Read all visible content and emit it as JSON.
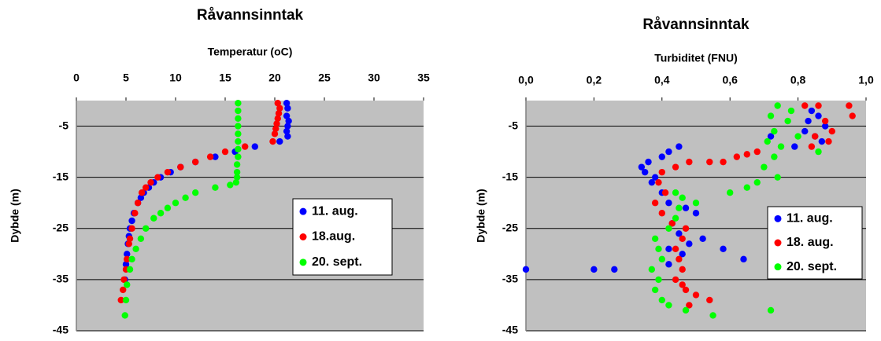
{
  "chart_data": [
    {
      "type": "scatter",
      "title": "Råvannsinntak",
      "x_label": "Temperatur (oC)",
      "y_label": "Dybde (m)",
      "xlim": [
        0,
        35
      ],
      "xticks": [
        0,
        5,
        10,
        15,
        20,
        25,
        30,
        35
      ],
      "ylim": [
        -45,
        0
      ],
      "yticks": [
        -5,
        -15,
        -25,
        -35,
        -45
      ],
      "grid": true,
      "legend": "right",
      "series": [
        {
          "name": "11. aug.",
          "color": "#0000ff",
          "x": [
            21.2,
            21.3,
            21.2,
            21.4,
            21.3,
            21.2,
            21.3,
            20.5,
            18,
            16,
            14,
            12,
            10.5,
            9.5,
            8.5,
            7.8,
            7.3,
            6.8,
            6.5,
            6.2,
            5.8,
            5.6,
            5.4,
            5.3,
            5.2,
            5.1,
            5.0,
            4.9
          ],
          "values": [
            -0.5,
            -1.5,
            -3,
            -4,
            -5,
            -6,
            -7,
            -8,
            -9,
            -10,
            -11,
            -12,
            -13,
            -14,
            -15,
            -16,
            -17,
            -18,
            -19,
            -20,
            -22,
            -23.5,
            -25,
            -26.5,
            -28,
            -30,
            -32,
            -35
          ]
        },
        {
          "name": "18.aug.",
          "color": "#ff0000",
          "x": [
            20.3,
            20.5,
            20.4,
            20.3,
            20.2,
            20.1,
            20.0,
            19.8,
            17,
            15,
            13.5,
            12,
            10.5,
            9.2,
            8.2,
            7.5,
            7,
            6.6,
            6.2,
            5.9,
            5.6,
            5.4,
            5.3,
            5.1,
            5.0,
            4.8,
            4.7,
            4.5
          ],
          "values": [
            -0.5,
            -1.5,
            -2.5,
            -3.5,
            -4.5,
            -5.5,
            -6.5,
            -8,
            -9,
            -10,
            -11,
            -12,
            -13,
            -14,
            -15,
            -16,
            -17,
            -18,
            -20,
            -22,
            -25,
            -27,
            -28,
            -31,
            -33,
            -35,
            -37,
            -39
          ]
        },
        {
          "name": "20. sept.",
          "color": "#00ff00",
          "x": [
            16.3,
            16.3,
            16.3,
            16.3,
            16.3,
            16.3,
            16.3,
            16.3,
            16.2,
            16.2,
            16.2,
            16.1,
            15.5,
            14,
            12,
            11,
            10,
            9.2,
            8.5,
            7.8,
            7,
            6.5,
            6,
            5.6,
            5.4,
            5.1,
            5.0,
            4.9
          ],
          "values": [
            -0.5,
            -2,
            -3.5,
            -5,
            -6.5,
            -8,
            -9.5,
            -11,
            -12.5,
            -14,
            -15,
            -16,
            -16.5,
            -17,
            -18,
            -19,
            -20,
            -21,
            -22,
            -23,
            -25,
            -27,
            -29,
            -31,
            -33,
            -36,
            -39,
            -42
          ]
        }
      ]
    },
    {
      "type": "scatter",
      "title": "Råvannsinntak",
      "x_label": "Turbiditet (FNU)",
      "y_label": "Dybde (m)",
      "xlim": [
        0,
        1
      ],
      "xticks": [
        {
          "value": 0,
          "label": "0,0"
        },
        {
          "value": 0.2,
          "label": "0,2"
        },
        {
          "value": 0.4,
          "label": "0,4"
        },
        {
          "value": 0.6,
          "label": "0,6"
        },
        {
          "value": 0.8,
          "label": "0,8"
        },
        {
          "value": 1,
          "label": "1,0"
        }
      ],
      "ylim": [
        -45,
        0
      ],
      "yticks": [
        -5,
        -15,
        -25,
        -35,
        -45
      ],
      "grid": true,
      "legend": "right",
      "series": [
        {
          "name": "11. aug.",
          "color": "#0000ff",
          "x": [
            0.84,
            0.86,
            0.83,
            0.88,
            0.82,
            0.85,
            0.87,
            0.79,
            0.72,
            0.45,
            0.42,
            0.4,
            0.36,
            0.34,
            0.35,
            0.38,
            0.37,
            0.4,
            0.42,
            0.47,
            0.5,
            0.43,
            0.45,
            0.48,
            0.42,
            0.58,
            0.64,
            0.46,
            0.0,
            0.2,
            0.26,
            0.52,
            0.42
          ],
          "values": [
            -2,
            -3,
            -4,
            -5,
            -6,
            -7,
            -8,
            -9,
            -7,
            -9,
            -10,
            -11,
            -12,
            -13,
            -14,
            -15,
            -16,
            -18,
            -20,
            -21,
            -22,
            -24,
            -26,
            -28,
            -29,
            -29,
            -31,
            -30,
            -33,
            -33,
            -33,
            -27,
            -32
          ]
        },
        {
          "name": "18. aug.",
          "color": "#ff0000",
          "x": [
            0.82,
            0.86,
            0.95,
            0.96,
            0.88,
            0.9,
            0.85,
            0.89,
            0.84,
            0.68,
            0.62,
            0.54,
            0.48,
            0.44,
            0.4,
            0.39,
            0.41,
            0.38,
            0.4,
            0.43,
            0.47,
            0.46,
            0.44,
            0.45,
            0.46,
            0.44,
            0.47,
            0.5,
            0.54,
            0.48,
            0.46,
            0.58,
            0.65
          ],
          "values": [
            -1,
            -1,
            -1,
            -3,
            -4,
            -6,
            -7,
            -8,
            -9,
            -10,
            -11,
            -12,
            -12,
            -13,
            -14,
            -16,
            -18,
            -20,
            -22,
            -24,
            -25,
            -27,
            -29,
            -31,
            -33,
            -35,
            -37,
            -38,
            -39,
            -40,
            -36,
            -12,
            -10.5
          ]
        },
        {
          "name": "20. sept.",
          "color": "#00ff00",
          "x": [
            0.74,
            0.78,
            0.72,
            0.77,
            0.73,
            0.71,
            0.75,
            0.73,
            0.7,
            0.74,
            0.68,
            0.65,
            0.8,
            0.86,
            0.44,
            0.46,
            0.45,
            0.44,
            0.42,
            0.38,
            0.39,
            0.4,
            0.37,
            0.39,
            0.38,
            0.4,
            0.42,
            0.47,
            0.55,
            0.72,
            0.6,
            0.5
          ],
          "values": [
            -1,
            -2,
            -3,
            -4,
            -6,
            -8,
            -9,
            -11,
            -13,
            -15,
            -16,
            -17,
            -7,
            -10,
            -18,
            -19,
            -21,
            -23,
            -25,
            -27,
            -29,
            -31,
            -33,
            -35,
            -37,
            -39,
            -40,
            -41,
            -42,
            -41,
            -18,
            -20
          ]
        }
      ]
    }
  ]
}
